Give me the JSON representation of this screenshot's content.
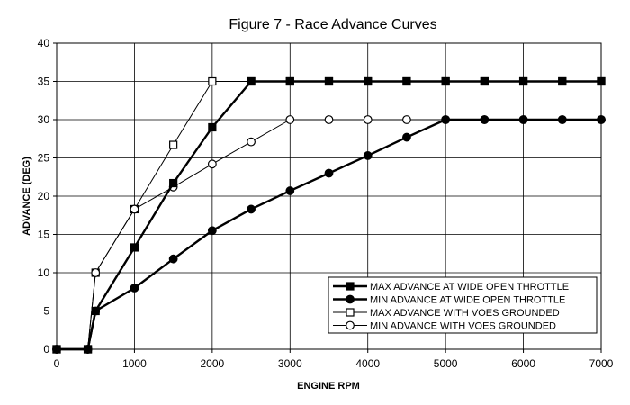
{
  "chart_data": {
    "type": "line",
    "title": "Figure 7 - Race Advance Curves",
    "xlabel": "ENGINE RPM",
    "ylabel": "ADVANCE (DEG)",
    "xlim": [
      0,
      7000
    ],
    "ylim": [
      0,
      40
    ],
    "xticks": [
      0,
      1000,
      2000,
      3000,
      4000,
      5000,
      6000,
      7000
    ],
    "yticks": [
      0,
      5,
      10,
      15,
      20,
      25,
      30,
      35,
      40
    ],
    "grid": true,
    "legend_position": "bottom-right",
    "series": [
      {
        "name": "MAX ADVANCE AT WIDE OPEN THROTTLE",
        "marker": "filled-square",
        "line": "thick",
        "x": [
          0,
          400,
          500,
          1000,
          1500,
          2000,
          2500,
          3000,
          3500,
          4000,
          4500,
          5000,
          5500,
          6000,
          6500,
          7000
        ],
        "y": [
          0,
          0,
          5,
          13.3,
          21.7,
          29,
          35,
          35,
          35,
          35,
          35,
          35,
          35,
          35,
          35,
          35
        ]
      },
      {
        "name": "MIN ADVANCE AT WIDE OPEN THROTTLE",
        "marker": "filled-circle",
        "line": "thick",
        "x": [
          0,
          400,
          500,
          1000,
          1500,
          2000,
          2500,
          3000,
          3500,
          4000,
          4500,
          5000,
          5500,
          6000,
          6500,
          7000
        ],
        "y": [
          0,
          0,
          5,
          8,
          11.8,
          15.5,
          18.3,
          20.7,
          23,
          25.3,
          27.7,
          30,
          30,
          30,
          30,
          30
        ]
      },
      {
        "name": "MAX ADVANCE WITH VOES GROUNDED",
        "marker": "open-square",
        "line": "thin",
        "x": [
          0,
          400,
          500,
          1000,
          1500,
          2000,
          2500,
          3000,
          3500,
          4000,
          4500,
          5000,
          5500,
          6000,
          6500,
          7000
        ],
        "y": [
          0,
          0,
          10,
          18.3,
          26.7,
          35,
          35,
          35,
          35,
          35,
          35,
          35,
          35,
          35,
          35,
          35
        ]
      },
      {
        "name": "MIN ADVANCE WITH VOES GROUNDED",
        "marker": "open-circle",
        "line": "thin",
        "x": [
          0,
          400,
          500,
          1000,
          1500,
          2000,
          2500,
          3000,
          3500,
          4000,
          4500,
          5000,
          5500,
          6000,
          6500,
          7000
        ],
        "y": [
          0,
          0,
          10,
          18.3,
          21.2,
          24.2,
          27.1,
          30,
          30,
          30,
          30,
          30,
          30,
          30,
          30,
          30
        ]
      }
    ]
  }
}
